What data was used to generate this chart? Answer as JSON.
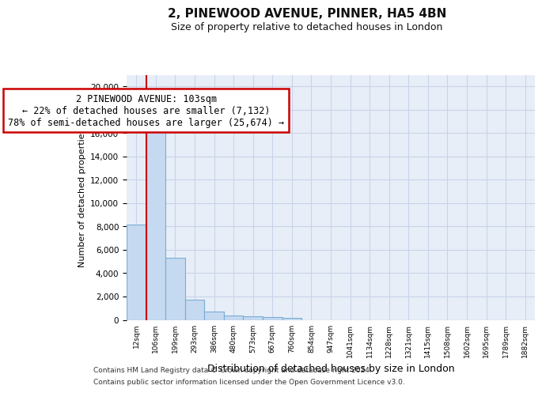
{
  "title1": "2, PINEWOOD AVENUE, PINNER, HA5 4BN",
  "title2": "Size of property relative to detached houses in London",
  "xlabel": "Distribution of detached houses by size in London",
  "ylabel": "Number of detached properties",
  "categories": [
    "12sqm",
    "106sqm",
    "199sqm",
    "293sqm",
    "386sqm",
    "480sqm",
    "573sqm",
    "667sqm",
    "760sqm",
    "854sqm",
    "947sqm",
    "1041sqm",
    "1134sqm",
    "1228sqm",
    "1321sqm",
    "1415sqm",
    "1508sqm",
    "1602sqm",
    "1695sqm",
    "1789sqm",
    "1882sqm"
  ],
  "values": [
    8150,
    16500,
    5300,
    1750,
    700,
    370,
    280,
    230,
    170,
    0,
    0,
    0,
    0,
    0,
    0,
    0,
    0,
    0,
    0,
    0,
    0
  ],
  "bar_color": "#c5d9f0",
  "bar_edge_color": "#7aadd4",
  "bar_linewidth": 0.8,
  "vline_color": "#cc0000",
  "annotation_line1": "2 PINEWOOD AVENUE: 103sqm",
  "annotation_line2": "← 22% of detached houses are smaller (7,132)",
  "annotation_line3": "78% of semi-detached houses are larger (25,674) →",
  "annotation_box_color": "#ffffff",
  "annotation_box_edge": "#cc0000",
  "ylim": [
    0,
    21000
  ],
  "yticks": [
    0,
    2000,
    4000,
    6000,
    8000,
    10000,
    12000,
    14000,
    16000,
    18000,
    20000
  ],
  "grid_color": "#c8d4e8",
  "bg_color": "#e8eef8",
  "footnote1": "Contains HM Land Registry data © Crown copyright and database right 2024.",
  "footnote2": "Contains public sector information licensed under the Open Government Licence v3.0."
}
